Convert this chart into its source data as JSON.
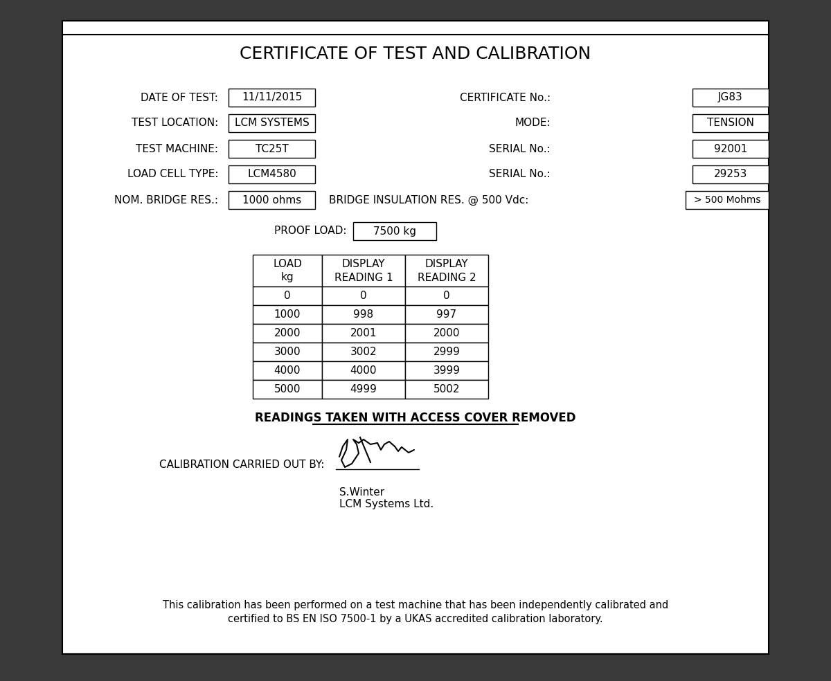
{
  "title": "CERTIFICATE OF TEST AND CALIBRATION",
  "fields_left": [
    {
      "label": "DATE OF TEST:",
      "value": "11/11/2015"
    },
    {
      "label": "TEST LOCATION:",
      "value": "LCM SYSTEMS"
    },
    {
      "label": "TEST MACHINE:",
      "value": "TC25T"
    },
    {
      "label": "LOAD CELL TYPE:",
      "value": "LCM4580"
    },
    {
      "label": "NOM. BRIDGE RES.:",
      "value": "1000 ohms"
    }
  ],
  "fields_right": [
    {
      "label": "CERTIFICATE No.:",
      "value": "JG83"
    },
    {
      "label": "MODE:",
      "value": "TENSION"
    },
    {
      "label": "SERIAL No.:",
      "value": "92001"
    },
    {
      "label": "SERIAL No.:",
      "value": "29253"
    }
  ],
  "bridge_insulation": "BRIDGE INSULATION RES. @ 500 Vdc:",
  "bridge_insulation_value": "> 500 Mohms",
  "proof_load_label": "PROOF LOAD:",
  "proof_load_value": "7500 kg",
  "table_headers": [
    "LOAD\nkg",
    "DISPLAY\nREADING 1",
    "DISPLAY\nREADING 2"
  ],
  "table_data": [
    [
      "0",
      "0",
      "0"
    ],
    [
      "1000",
      "998",
      "997"
    ],
    [
      "2000",
      "2001",
      "2000"
    ],
    [
      "3000",
      "3002",
      "2999"
    ],
    [
      "4000",
      "4000",
      "3999"
    ],
    [
      "5000",
      "4999",
      "5002"
    ]
  ],
  "readings_note": "READINGS TAKEN WITH ACCESS COVER REMOVED",
  "calibration_label": "CALIBRATION CARRIED OUT BY:",
  "signatory_name": "S.Winter",
  "signatory_company": "LCM Systems Ltd.",
  "footer_line1": "This calibration has been performed on a test machine that has been independently calibrated and",
  "footer_line2": "certified to BS EN ISO 7500-1 by a UKAS accredited calibration laboratory.",
  "bg_color": "#ffffff",
  "text_color": "#000000",
  "dark_bg": "#3a3a3a"
}
